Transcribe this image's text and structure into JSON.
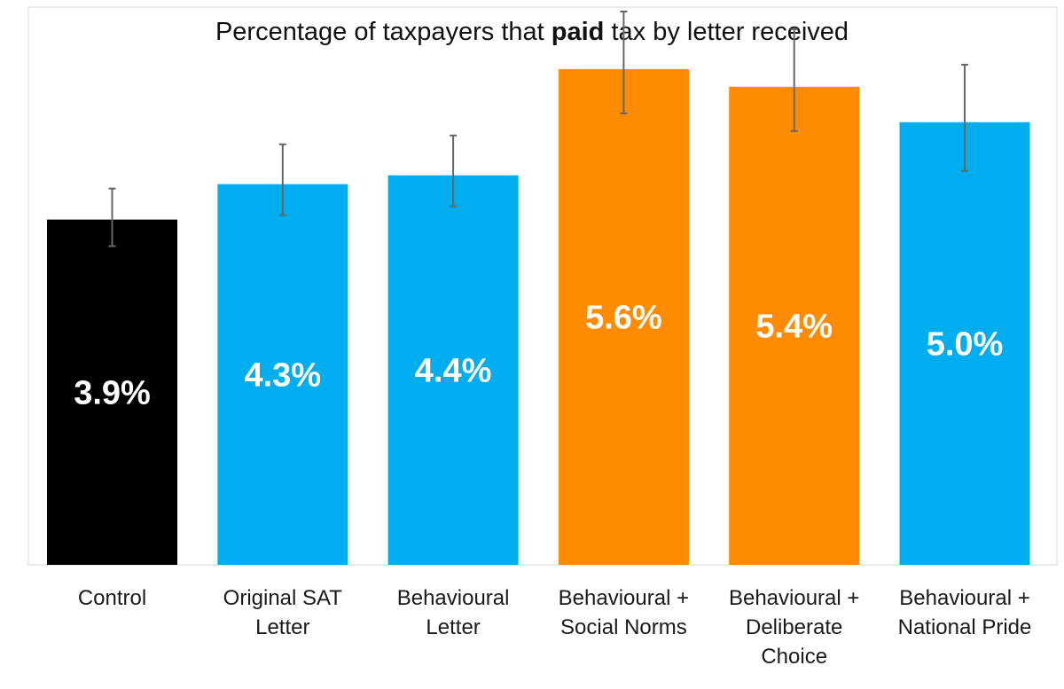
{
  "chart_data": {
    "type": "bar",
    "title": "Percentage of taxpayers that paid tax by letter received",
    "title_parts": [
      {
        "text": "Percentage of taxpayers that ",
        "bold": false
      },
      {
        "text": "paid",
        "bold": true
      },
      {
        "text": " tax by letter received",
        "bold": false
      }
    ],
    "categories": [
      [
        "Control"
      ],
      [
        "Original SAT",
        "Letter"
      ],
      [
        "Behavioural",
        "Letter"
      ],
      [
        "Behavioural +",
        "Social Norms"
      ],
      [
        "Behavioural +",
        "Deliberate",
        "Choice"
      ],
      [
        "Behavioural +",
        "National Pride"
      ]
    ],
    "values": [
      3.9,
      4.3,
      4.4,
      5.6,
      5.4,
      5.0
    ],
    "value_labels": [
      "3.9%",
      "4.3%",
      "4.4%",
      "5.6%",
      "5.4%",
      "5.0%"
    ],
    "error_low": [
      3.6,
      3.95,
      4.05,
      5.1,
      4.9,
      4.45
    ],
    "error_high": [
      4.25,
      4.75,
      4.85,
      6.25,
      6.05,
      5.65
    ],
    "colors": [
      "#000000",
      "#00AEEF",
      "#00AEEF",
      "#FF8C00",
      "#FF8C00",
      "#00AEEF"
    ],
    "error_bar_color": "#666666",
    "ylim": [
      0,
      6.3
    ],
    "xlabel": "",
    "ylabel": "",
    "grid": false,
    "legend": "none"
  }
}
